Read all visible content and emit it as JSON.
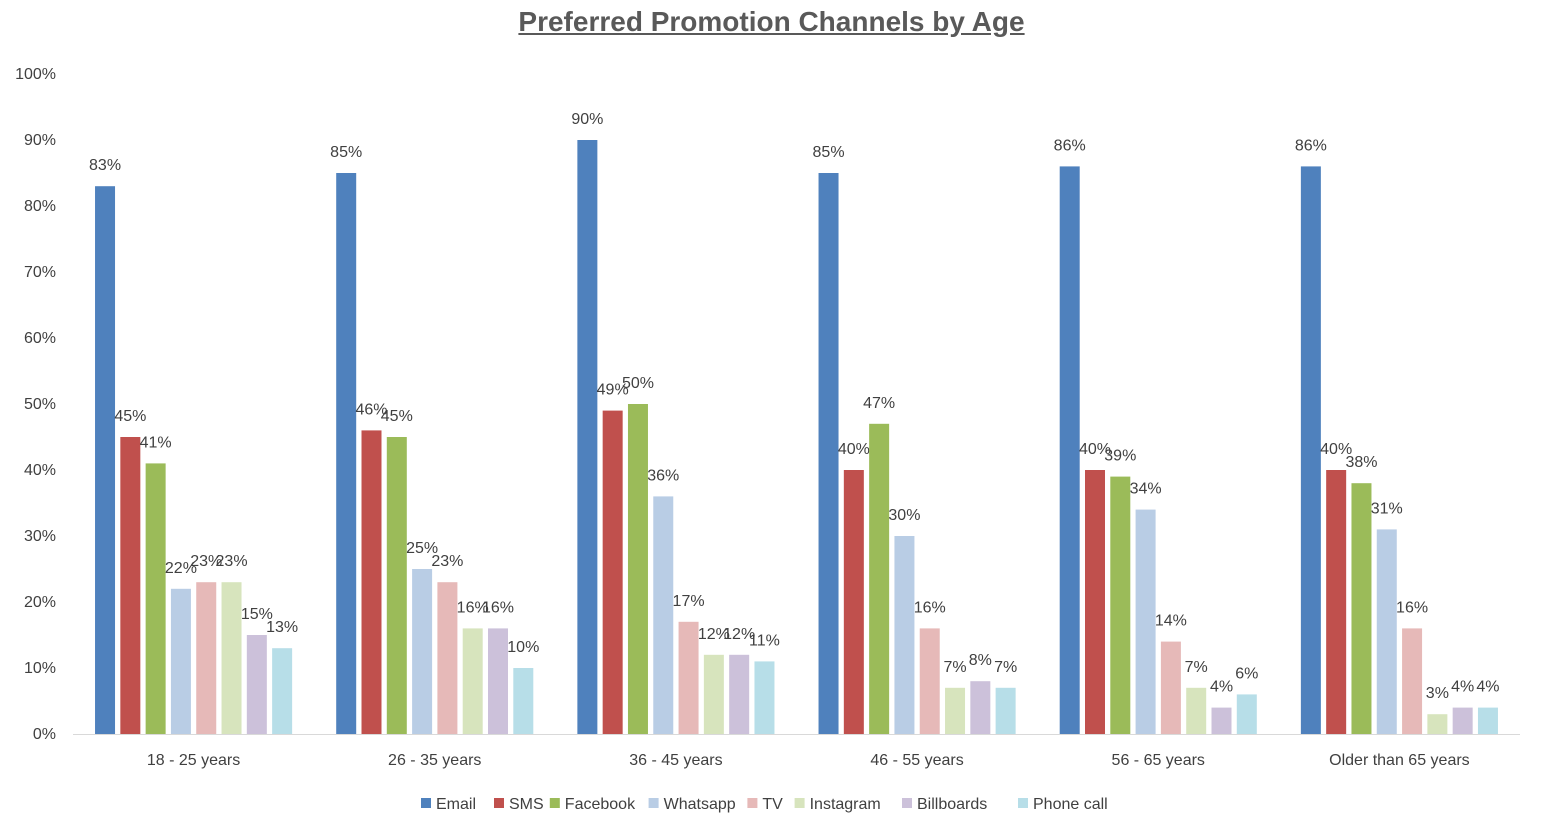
{
  "chart_data": {
    "type": "bar",
    "title": "Preferred Promotion Channels by Age",
    "xlabel": "",
    "ylabel": "",
    "ylim": [
      0,
      100
    ],
    "yticks": [
      "0%",
      "10%",
      "20%",
      "30%",
      "40%",
      "50%",
      "60%",
      "70%",
      "80%",
      "90%",
      "100%"
    ],
    "grid": false,
    "legend": "bottom",
    "categories": [
      "18 - 25 years",
      "26 - 35 years",
      "36 - 45 years",
      "46 - 55 years",
      "56 - 65 years",
      "Older than 65 years"
    ],
    "series": [
      {
        "name": "Email",
        "color": "#4F81BD",
        "values": [
          83,
          85,
          90,
          85,
          86,
          86
        ]
      },
      {
        "name": "SMS",
        "color": "#C0504D",
        "values": [
          45,
          46,
          49,
          40,
          40,
          40
        ]
      },
      {
        "name": "Facebook",
        "color": "#9BBB59",
        "values": [
          41,
          45,
          50,
          47,
          39,
          38
        ]
      },
      {
        "name": "Whatsapp",
        "color": "#B9CDE5",
        "values": [
          22,
          25,
          36,
          30,
          34,
          31
        ]
      },
      {
        "name": "TV",
        "color": "#E6B9B8",
        "values": [
          23,
          23,
          17,
          16,
          14,
          16
        ]
      },
      {
        "name": "Instagram",
        "color": "#D7E4BD",
        "values": [
          23,
          16,
          12,
          7,
          7,
          3
        ]
      },
      {
        "name": "Billboards",
        "color": "#CCC1DA",
        "values": [
          15,
          16,
          12,
          8,
          4,
          4
        ]
      },
      {
        "name": "Phone call",
        "color": "#B7DEE8",
        "values": [
          13,
          10,
          11,
          7,
          6,
          4
        ]
      }
    ]
  }
}
